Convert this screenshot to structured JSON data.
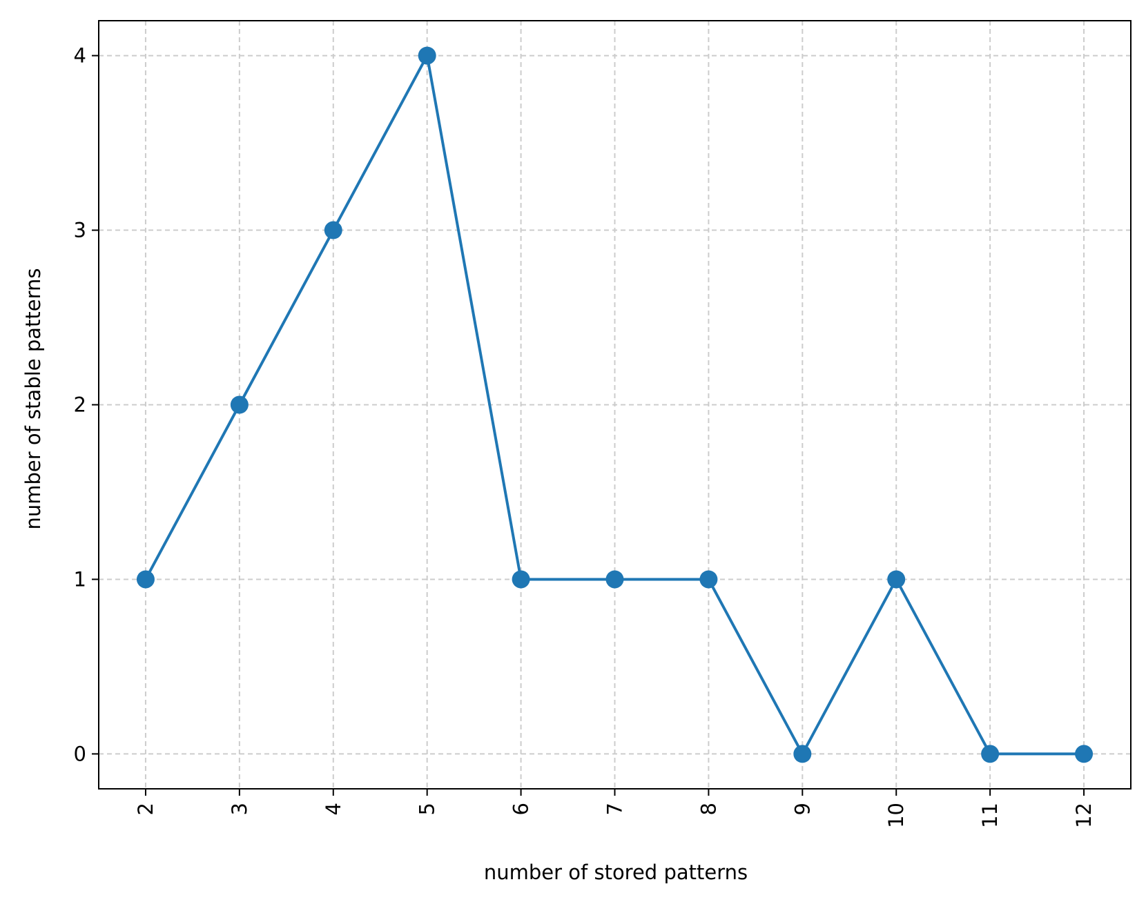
{
  "chart_data": {
    "type": "line",
    "xlabel": "number of stored patterns",
    "ylabel": "number of stable patterns",
    "x": [
      2,
      3,
      4,
      5,
      6,
      7,
      8,
      9,
      10,
      11,
      12
    ],
    "y": [
      1,
      2,
      3,
      4,
      1,
      1,
      1,
      0,
      1,
      0,
      0
    ],
    "xticks": [
      "2",
      "3",
      "4",
      "5",
      "6",
      "7",
      "8",
      "9",
      "10",
      "11",
      "12"
    ],
    "yticks": [
      "0",
      "1",
      "2",
      "3",
      "4"
    ],
    "xlim": [
      1.5,
      12.5
    ],
    "ylim": [
      -0.2,
      4.2
    ],
    "xtick_rotation": "vertical",
    "grid": true,
    "grid_style": "dashed",
    "marker": "circle",
    "series_color": "#1f77b4",
    "grid_color": "#cccccc",
    "axis_color": "#000000"
  }
}
